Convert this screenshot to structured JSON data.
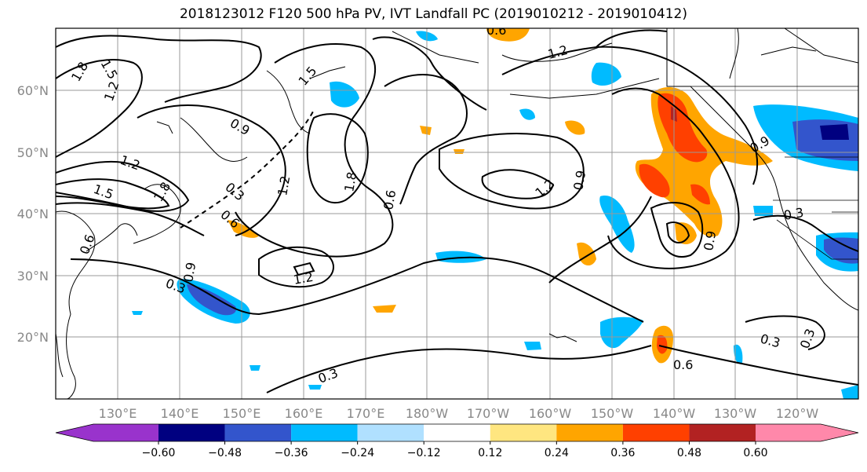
{
  "title": "2018123012 F120 500 hPa PV, IVT Landfall PC (2019010212 - 2019010412)",
  "map": {
    "lat_labels": [
      "20°N",
      "30°N",
      "40°N",
      "50°N",
      "60°N"
    ],
    "lon_labels": [
      "130°E",
      "140°E",
      "150°E",
      "160°E",
      "170°E",
      "180°W",
      "170°W",
      "160°W",
      "150°W",
      "140°W",
      "130°W",
      "120°W"
    ],
    "contour_labels": [
      "1.5",
      "1.8",
      "1.2",
      "1.2",
      "1.5",
      "1.8",
      "0.9",
      "0.3",
      "0.6",
      "1.5",
      "1.2",
      "1.8",
      "1.2",
      "0.6",
      "0.9",
      "1.2",
      "0.9",
      "0.9",
      "1.2",
      "0.3",
      "0.6",
      "0.9",
      "0.3",
      "0.6",
      "0.3",
      "0.3",
      "0.3",
      "0.6"
    ]
  },
  "colorbar": {
    "tick_labels": [
      "−0.60",
      "−0.48",
      "−0.36",
      "−0.24",
      "−0.12",
      "0.12",
      "0.24",
      "0.36",
      "0.48",
      "0.60"
    ],
    "colors": [
      "#9933cc",
      "#000080",
      "#3355cc",
      "#00bbff",
      "#b0e0ff",
      "#ffffff",
      "#ffe680",
      "#ffa500",
      "#ff4000",
      "#b22222",
      "#ff88aa"
    ]
  }
}
